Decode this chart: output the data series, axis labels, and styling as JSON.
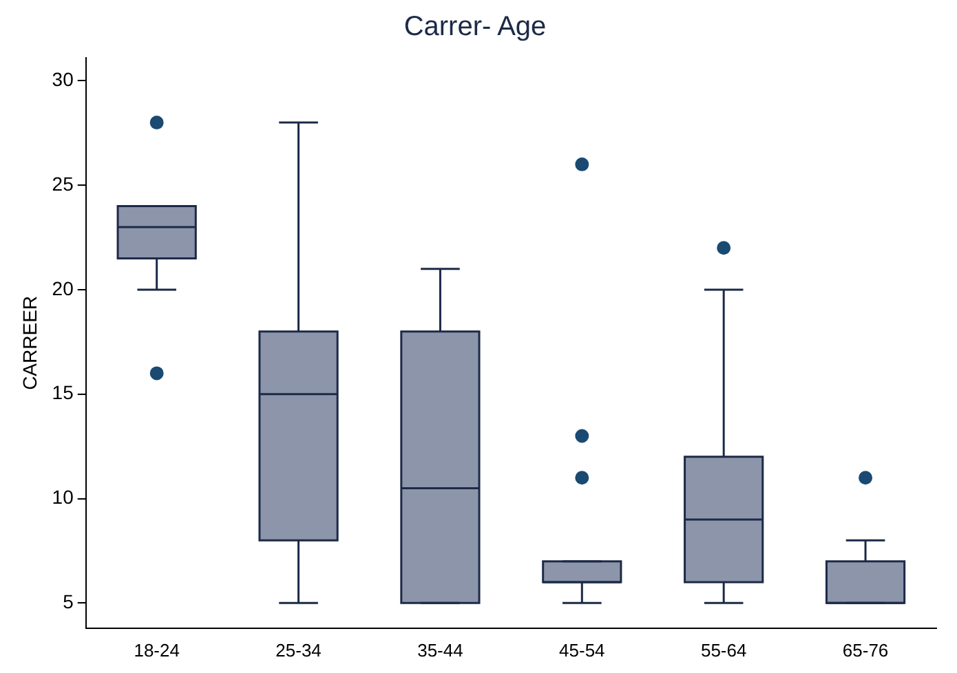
{
  "chart_data": {
    "type": "box",
    "title": "Carrer- Age",
    "ylabel": "CARREER",
    "categories": [
      "18-24",
      "25-34",
      "35-44",
      "45-54",
      "55-64",
      "65-76"
    ],
    "boxes": [
      {
        "low": 20,
        "q1": 21.5,
        "median": 23,
        "q3": 24,
        "high": 24,
        "outliers": [
          28,
          16
        ]
      },
      {
        "low": 5,
        "q1": 8,
        "median": 15,
        "q3": 18,
        "high": 28
      },
      {
        "low": 5,
        "q1": 5,
        "median": 10.5,
        "q3": 18,
        "high": 21
      },
      {
        "low": 5,
        "q1": 6,
        "median": 6,
        "q3": 7,
        "high": 7,
        "outliers": [
          26,
          13,
          11
        ]
      },
      {
        "low": 5,
        "q1": 6,
        "median": 9,
        "q3": 12,
        "high": 20,
        "outliers": [
          22
        ]
      },
      {
        "low": 5,
        "q1": 5,
        "median": 5,
        "q3": 7,
        "high": 8,
        "outliers": [
          11
        ]
      }
    ],
    "color": "#8d95aa",
    "ylim": [
      3.8,
      31.1
    ],
    "yticks": [
      5,
      10,
      15,
      20,
      25,
      30
    ],
    "grid": false,
    "legend": false
  }
}
